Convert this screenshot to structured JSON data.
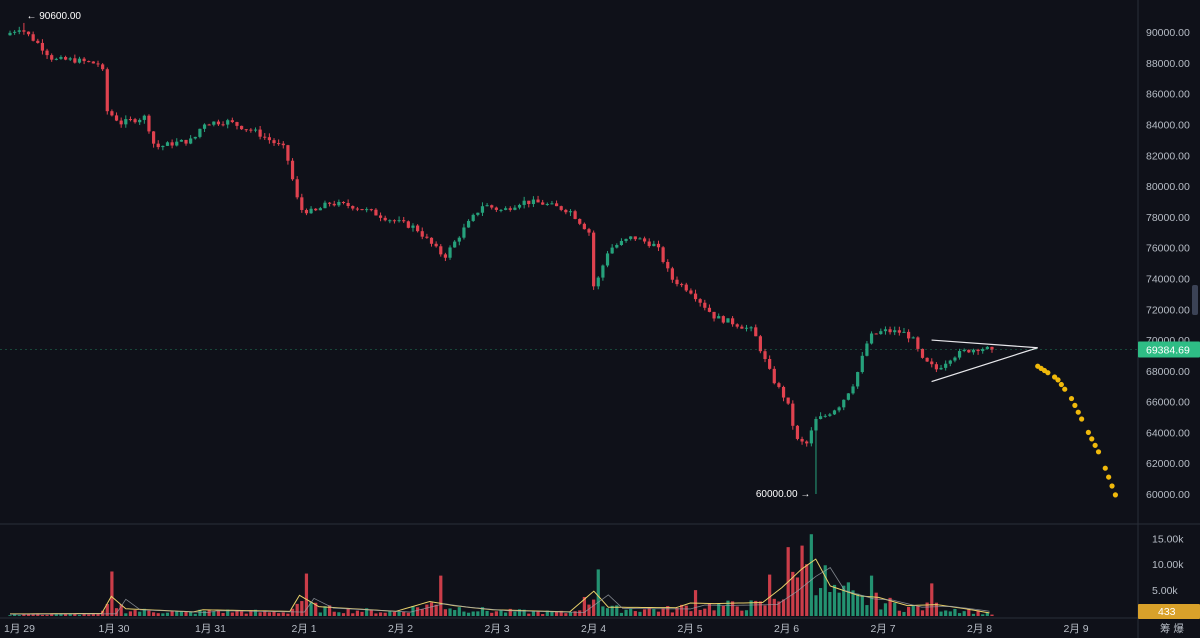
{
  "colors": {
    "background": "#0f1119",
    "up": "#0ecb81",
    "down": "#f6465d",
    "up_candle": "#26a17b",
    "down_candle": "#e0424f",
    "price_tag": "#2ebd85",
    "volume_tag": "#d9a12a",
    "forecast": "#f0b90b",
    "axis_text": "#b7bdc6",
    "divider": "#2a2e39",
    "ma_fast": "#e8d06a",
    "ma_slow": "#9aa0a8"
  },
  "chart_data": {
    "type": "candlestick",
    "instrument_note": "",
    "price_axis": {
      "ylim": [
        58700,
        91700
      ],
      "ticks": [
        60000,
        62000,
        64000,
        66000,
        68000,
        70000,
        72000,
        74000,
        76000,
        78000,
        80000,
        82000,
        84000,
        86000,
        88000,
        90000
      ],
      "tick_labels": [
        "60000.00",
        "62000.00",
        "64000.00",
        "66000.00",
        "68000.00",
        "70000.00",
        "72000.00",
        "74000.00",
        "76000.00",
        "78000.00",
        "80000.00",
        "82000.00",
        "84000.00",
        "86000.00",
        "88000.00",
        "90000.00"
      ]
    },
    "volume_axis": {
      "ylim": [
        0,
        17000
      ],
      "ticks": [
        5000,
        10000,
        15000
      ],
      "tick_labels": [
        "5.00k",
        "10.00k",
        "15.00k"
      ]
    },
    "x_axis": {
      "start": "1月 29",
      "end": "2月 9",
      "tick_labels": [
        "1月 29",
        "1月 30",
        "1月 31",
        "2月 1",
        "2月 2",
        "2月 3",
        "2月 4",
        "2月 5",
        "2月 6",
        "2月 7",
        "2月 8",
        "2月 9"
      ],
      "tick_day_offsets": [
        0,
        1,
        2,
        3,
        4,
        5,
        6,
        7,
        8,
        9,
        10,
        11
      ]
    },
    "price_path": [
      [
        0.0,
        89800
      ],
      [
        0.15,
        90300
      ],
      [
        0.35,
        89200
      ],
      [
        0.5,
        88200
      ],
      [
        0.7,
        88200
      ],
      [
        1.0,
        87900
      ],
      [
        1.05,
        84900
      ],
      [
        1.2,
        84100
      ],
      [
        1.45,
        84500
      ],
      [
        1.55,
        82500
      ],
      [
        1.75,
        82800
      ],
      [
        1.95,
        83000
      ],
      [
        2.05,
        84100
      ],
      [
        2.3,
        84200
      ],
      [
        2.6,
        83500
      ],
      [
        2.9,
        82400
      ],
      [
        3.05,
        78500
      ],
      [
        3.2,
        78300
      ],
      [
        3.35,
        78900
      ],
      [
        3.6,
        78700
      ],
      [
        3.8,
        78300
      ],
      [
        4.0,
        77800
      ],
      [
        4.25,
        77300
      ],
      [
        4.45,
        76000
      ],
      [
        4.55,
        75400
      ],
      [
        4.75,
        77200
      ],
      [
        4.95,
        78800
      ],
      [
        5.15,
        78400
      ],
      [
        5.35,
        79000
      ],
      [
        5.55,
        78900
      ],
      [
        5.85,
        78400
      ],
      [
        6.05,
        77000
      ],
      [
        6.1,
        73200
      ],
      [
        6.25,
        75900
      ],
      [
        6.5,
        76700
      ],
      [
        6.75,
        76100
      ],
      [
        6.9,
        74000
      ],
      [
        7.1,
        73200
      ],
      [
        7.35,
        71500
      ],
      [
        7.55,
        71100
      ],
      [
        7.75,
        70600
      ],
      [
        7.85,
        69000
      ],
      [
        7.95,
        67500
      ],
      [
        8.1,
        66000
      ],
      [
        8.2,
        63500
      ],
      [
        8.3,
        63200
      ],
      [
        8.4,
        64800
      ],
      [
        8.5,
        65100
      ],
      [
        8.65,
        65800
      ],
      [
        8.8,
        67300
      ],
      [
        8.95,
        70200
      ],
      [
        9.1,
        70600
      ],
      [
        9.3,
        70500
      ],
      [
        9.4,
        70100
      ],
      [
        9.5,
        68700
      ],
      [
        9.65,
        68100
      ],
      [
        9.8,
        68900
      ],
      [
        9.95,
        69300
      ],
      [
        10.1,
        69500
      ],
      [
        10.2,
        69385
      ]
    ],
    "wick_extremes": [
      {
        "day": 0.15,
        "high": 90600
      },
      {
        "day": 8.33,
        "low": 60000
      }
    ],
    "triangle_pattern": {
      "upper_start": [
        9.55,
        70000
      ],
      "lower_start": [
        9.55,
        67300
      ],
      "apex": [
        10.65,
        69500
      ]
    },
    "forecast_path": [
      [
        10.65,
        68300
      ],
      [
        10.85,
        67500
      ],
      [
        11.0,
        66200
      ],
      [
        11.15,
        64300
      ],
      [
        11.3,
        62500
      ],
      [
        11.5,
        59200
      ]
    ],
    "annotations": {
      "high_label": "90600.00",
      "low_label": "60000.00"
    },
    "last_price": 69384.69,
    "last_price_label": "69384.69",
    "last_volume_label": "433",
    "volume_profile": [
      [
        0.0,
        400
      ],
      [
        0.95,
        500
      ],
      [
        1.05,
        3800
      ],
      [
        1.2,
        1400
      ],
      [
        1.9,
        800
      ],
      [
        2.0,
        1200
      ],
      [
        2.9,
        900
      ],
      [
        3.0,
        4000
      ],
      [
        3.2,
        1800
      ],
      [
        4.0,
        900
      ],
      [
        4.35,
        2800
      ],
      [
        4.6,
        2000
      ],
      [
        5.0,
        1200
      ],
      [
        5.8,
        800
      ],
      [
        6.05,
        4800
      ],
      [
        6.2,
        1700
      ],
      [
        6.9,
        1600
      ],
      [
        7.05,
        2500
      ],
      [
        7.3,
        2400
      ],
      [
        7.8,
        2600
      ],
      [
        8.0,
        5500
      ],
      [
        8.2,
        9000
      ],
      [
        8.35,
        11000
      ],
      [
        8.5,
        5800
      ],
      [
        8.8,
        3900
      ],
      [
        9.0,
        3600
      ],
      [
        9.3,
        2000
      ],
      [
        9.6,
        2200
      ],
      [
        9.9,
        1400
      ],
      [
        10.2,
        433
      ]
    ],
    "volume_spikes": [
      [
        1.07,
        8600
      ],
      [
        3.05,
        8200
      ],
      [
        4.45,
        7800
      ],
      [
        6.08,
        9000
      ],
      [
        7.1,
        5000
      ],
      [
        7.85,
        8000
      ],
      [
        8.05,
        13300
      ],
      [
        8.2,
        13600
      ],
      [
        8.32,
        15800
      ],
      [
        8.45,
        9800
      ],
      [
        8.7,
        6500
      ],
      [
        8.95,
        7800
      ],
      [
        9.55,
        6300
      ]
    ]
  },
  "axis_footer": {
    "icon_label": "筹 爆"
  }
}
